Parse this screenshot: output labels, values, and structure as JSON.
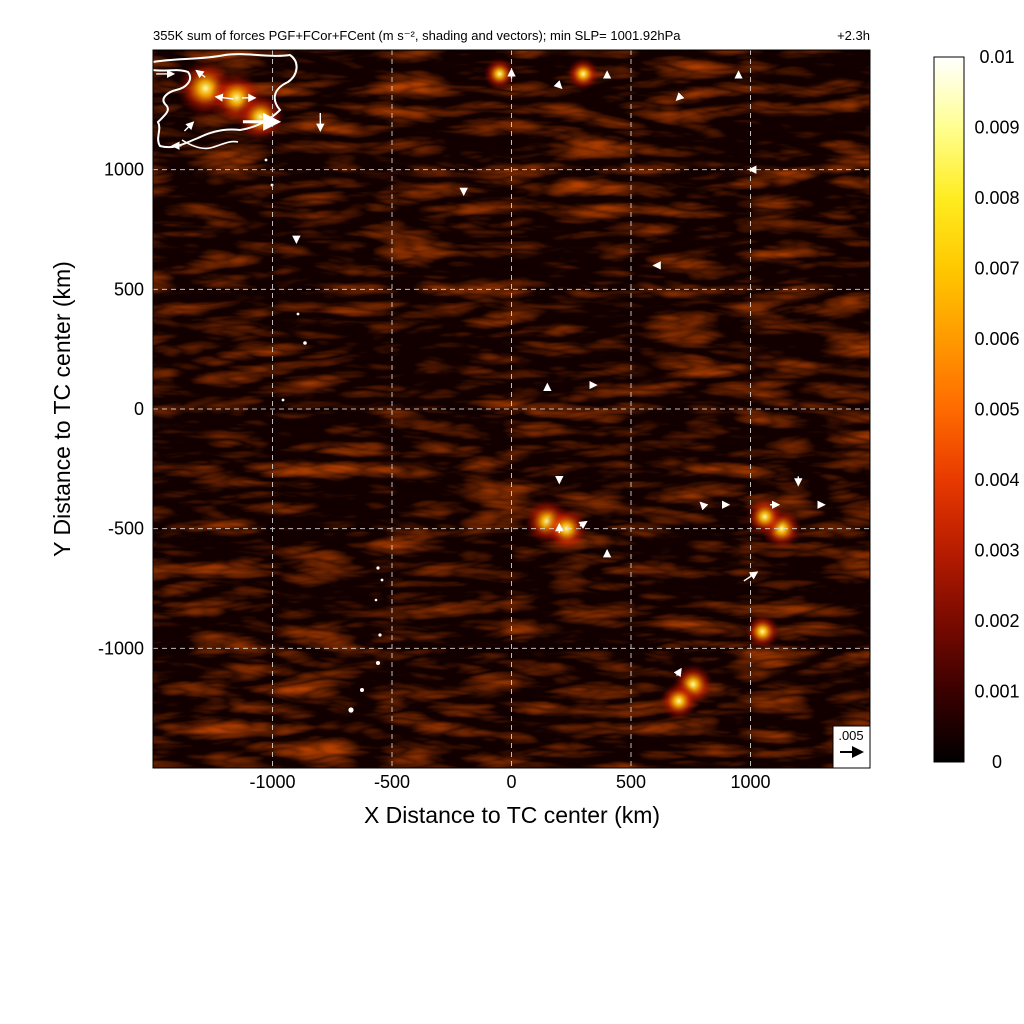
{
  "chart_data": {
    "type": "heatmap",
    "title": "355K sum of forces PGF+FCor+FCent (m s⁻², shading and vectors); min SLP= 1001.92hPa",
    "time_label": "+2.3h",
    "xlabel": "X Distance to TC center (km)",
    "ylabel": "Y Distance to TC center (km)",
    "xlim": [
      -1500,
      1500
    ],
    "ylim": [
      -1500,
      1500
    ],
    "xticks": [
      -1000,
      -500,
      0,
      500,
      1000
    ],
    "xtick_labels": [
      "-1000",
      "-500",
      "0",
      "500",
      "1000"
    ],
    "yticks": [
      -1000,
      -500,
      0,
      500,
      1000
    ],
    "ytick_labels": [
      "-1000",
      "-500",
      "0",
      "500",
      "1000"
    ],
    "grid": true,
    "colorbar": {
      "min": 0,
      "max": 0.01,
      "ticks": [
        0,
        0.001,
        0.002,
        0.003,
        0.004,
        0.005,
        0.006,
        0.007,
        0.008,
        0.009,
        0.01
      ],
      "tick_labels": [
        "0",
        "0.001",
        "0.002",
        "0.003",
        "0.004",
        "0.005",
        "0.006",
        "0.007",
        "0.008",
        "0.009",
        "0.01"
      ],
      "colormap": [
        "#000000",
        "#3a0000",
        "#7a0a00",
        "#b81c00",
        "#e83a00",
        "#ff6a00",
        "#ff9a00",
        "#ffc800",
        "#ffec20",
        "#ffff90",
        "#ffffff"
      ]
    },
    "reference_vector": {
      "label": ".005",
      "value": 0.005
    },
    "hotspots": [
      {
        "x": -1280,
        "y": 1340,
        "value": 0.0075
      },
      {
        "x": -1150,
        "y": 1300,
        "value": 0.0065
      },
      {
        "x": -1050,
        "y": 1220,
        "value": 0.006
      },
      {
        "x": 150,
        "y": -470,
        "value": 0.0055
      },
      {
        "x": 230,
        "y": -500,
        "value": 0.005
      },
      {
        "x": 1130,
        "y": -500,
        "value": 0.0045
      },
      {
        "x": 1060,
        "y": -450,
        "value": 0.004
      },
      {
        "x": 760,
        "y": -1150,
        "value": 0.0045
      },
      {
        "x": 700,
        "y": -1220,
        "value": 0.004
      },
      {
        "x": 1050,
        "y": -930,
        "value": 0.0035
      },
      {
        "x": -50,
        "y": 1400,
        "value": 0.003
      },
      {
        "x": 300,
        "y": 1400,
        "value": 0.003
      }
    ],
    "vectors": [
      {
        "x": -1450,
        "y": 1400,
        "u": 0.004,
        "v": 0.0
      },
      {
        "x": -1300,
        "y": 1400,
        "u": -0.002,
        "v": 0.0015
      },
      {
        "x": -1200,
        "y": 1300,
        "u": -0.004,
        "v": 0.0005
      },
      {
        "x": -1100,
        "y": 1300,
        "u": 0.003,
        "v": 0.0
      },
      {
        "x": -1050,
        "y": 1200,
        "u": 0.008,
        "v": 0.0
      },
      {
        "x": -800,
        "y": 1200,
        "u": 0.0,
        "v": -0.004
      },
      {
        "x": -1350,
        "y": 1180,
        "u": 0.002,
        "v": 0.002
      },
      {
        "x": -1400,
        "y": 1100,
        "u": -0.002,
        "v": 0.0
      },
      {
        "x": 0,
        "y": 1400,
        "u": 0.0,
        "v": 0.002
      },
      {
        "x": 200,
        "y": 1350,
        "u": 0.001,
        "v": -0.001
      },
      {
        "x": 400,
        "y": 1400,
        "u": 0.0,
        "v": 0.001
      },
      {
        "x": 700,
        "y": 1300,
        "u": -0.001,
        "v": -0.001
      },
      {
        "x": 950,
        "y": 1400,
        "u": 0.0,
        "v": 0.001
      },
      {
        "x": 150,
        "y": 100,
        "u": 0.0,
        "v": 0.0005
      },
      {
        "x": 350,
        "y": 100,
        "u": 0.0005,
        "v": 0.0
      },
      {
        "x": 200,
        "y": -300,
        "u": 0.0,
        "v": -0.001
      },
      {
        "x": 200,
        "y": -500,
        "u": 0.0,
        "v": 0.002
      },
      {
        "x": 300,
        "y": -480,
        "u": 0.0015,
        "v": 0.001
      },
      {
        "x": 400,
        "y": -600,
        "u": 0.0,
        "v": 0.001
      },
      {
        "x": 1000,
        "y": -700,
        "u": 0.003,
        "v": 0.002
      },
      {
        "x": 1100,
        "y": -400,
        "u": 0.002,
        "v": 0.0
      },
      {
        "x": 1200,
        "y": -300,
        "u": 0.0,
        "v": -0.002
      },
      {
        "x": 900,
        "y": -400,
        "u": 0.001,
        "v": 0.0
      },
      {
        "x": 800,
        "y": -400,
        "u": -0.001,
        "v": 0.001
      },
      {
        "x": 700,
        "y": -1100,
        "u": 0.001,
        "v": 0.0015
      },
      {
        "x": 1300,
        "y": -400,
        "u": 0.001,
        "v": 0.0
      },
      {
        "x": -900,
        "y": 700,
        "u": 0.0,
        "v": -0.0005
      },
      {
        "x": -200,
        "y": 900,
        "u": 0.0,
        "v": -0.0005
      },
      {
        "x": 600,
        "y": 600,
        "u": -0.0005,
        "v": 0.0
      },
      {
        "x": 1000,
        "y": 1000,
        "u": -0.0005,
        "v": 0.0
      }
    ]
  }
}
